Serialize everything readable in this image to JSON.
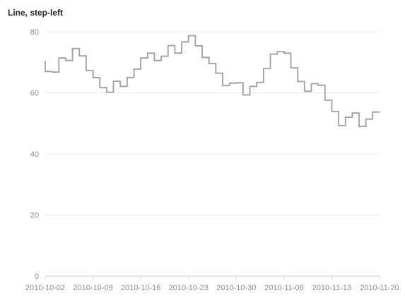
{
  "chart_data": {
    "type": "line",
    "title": "Line, step-left",
    "xlabel": "",
    "ylabel": "",
    "step": "left",
    "ylim": [
      0,
      80
    ],
    "y_ticks": [
      0,
      20,
      40,
      60,
      80
    ],
    "x_range": [
      "2010-10-02",
      "2010-11-20"
    ],
    "x_ticks": [
      "2010-10-02",
      "2010-10-09",
      "2010-10-16",
      "2010-10-23",
      "2010-10-30",
      "2010-11-06",
      "2010-11-13",
      "2010-11-20"
    ],
    "grid": "horizontal",
    "line_color": "#9e9e9e",
    "series": [
      {
        "x": [
          "2010-10-02",
          "2010-10-03",
          "2010-10-04",
          "2010-10-05",
          "2010-10-06",
          "2010-10-07",
          "2010-10-08",
          "2010-10-09",
          "2010-10-10",
          "2010-10-11",
          "2010-10-12",
          "2010-10-13",
          "2010-10-14",
          "2010-10-15",
          "2010-10-16",
          "2010-10-17",
          "2010-10-18",
          "2010-10-19",
          "2010-10-20",
          "2010-10-21",
          "2010-10-22",
          "2010-10-23",
          "2010-10-24",
          "2010-10-25",
          "2010-10-26",
          "2010-10-27",
          "2010-10-28",
          "2010-10-29",
          "2010-10-30",
          "2010-10-31",
          "2010-11-01",
          "2010-11-02",
          "2010-11-03",
          "2010-11-04",
          "2010-11-05",
          "2010-11-06",
          "2010-11-07",
          "2010-11-08",
          "2010-11-09",
          "2010-11-10",
          "2010-11-11",
          "2010-11-12",
          "2010-11-13",
          "2010-11-14",
          "2010-11-15",
          "2010-11-16",
          "2010-11-17",
          "2010-11-18",
          "2010-11-19",
          "2010-11-20"
        ],
        "values": [
          70.5,
          67,
          66.8,
          71.4,
          70.6,
          74.5,
          72.1,
          67.3,
          65,
          61.7,
          60.2,
          63.8,
          62.1,
          65,
          67.8,
          71.4,
          73,
          70.6,
          72,
          75.5,
          73,
          76.7,
          78.7,
          75.4,
          71.6,
          69.6,
          66.4,
          62.4,
          63.2,
          63.3,
          59.3,
          62.1,
          63.4,
          68,
          72.7,
          73.5,
          73,
          68.2,
          63.7,
          60.5,
          63,
          62.5,
          57.6,
          53.9,
          49.3,
          52,
          53.4,
          49,
          51.4,
          53.7
        ]
      }
    ]
  }
}
